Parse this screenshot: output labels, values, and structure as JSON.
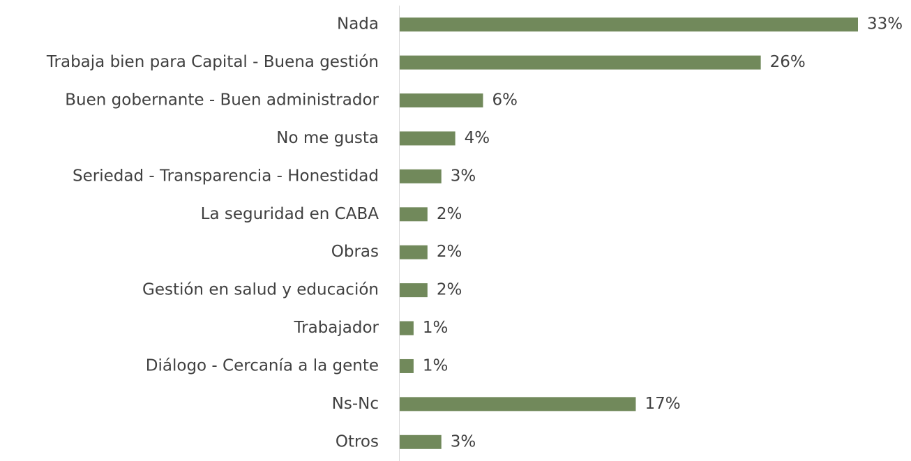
{
  "chart_data": {
    "type": "bar",
    "orientation": "horizontal",
    "categories": [
      "Nada",
      "Trabaja bien para Capital - Buena gestión",
      "Buen gobernante - Buen administrador",
      "No me gusta",
      "Seriedad - Transparencia - Honestidad",
      "La seguridad en CABA",
      "Obras",
      "Gestión en salud y educación",
      "Trabajador",
      "Diálogo - Cercanía a la gente",
      "Ns-Nc",
      "Otros"
    ],
    "values": [
      33,
      26,
      6,
      4,
      3,
      2,
      2,
      2,
      1,
      1,
      17,
      3
    ],
    "value_labels": [
      "33%",
      "26%",
      "6%",
      "4%",
      "3%",
      "2%",
      "2%",
      "2%",
      "1%",
      "1%",
      "17%",
      "3%"
    ],
    "color": "#71895b"
  }
}
